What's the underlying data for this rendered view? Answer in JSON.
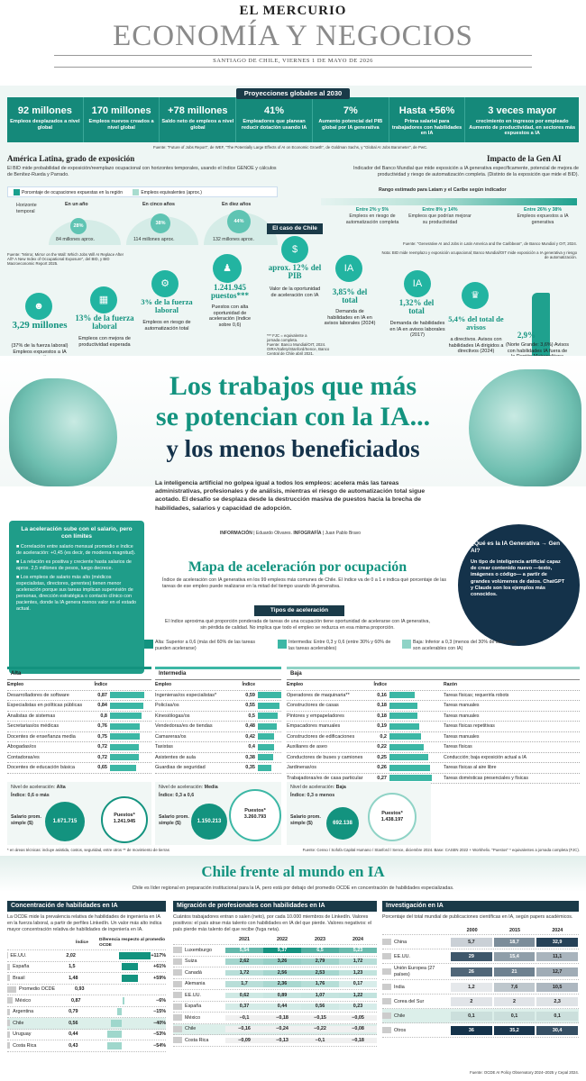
{
  "masthead": {
    "paper": "EL MERCURIO",
    "section": "ECONOMÍA Y NEGOCIOS",
    "dateline": "SANTIAGO DE CHILE, VIERNES 1 DE MAYO DE 2026"
  },
  "projections": {
    "title": "Proyecciones globales al 2030",
    "items": [
      {
        "value": "92 millones",
        "label": "Empleos desplazados a nivel global"
      },
      {
        "value": "170 millones",
        "label": "Empleos nuevos creados a nivel global"
      },
      {
        "value": "+78 millones",
        "label": "Saldo neto de empleos a nivel global"
      },
      {
        "value": "41%",
        "label": "Empleadores que planean reducir dotación usando IA"
      },
      {
        "value": "7%",
        "label": "Aumento potencial del PIB global por IA generativa"
      },
      {
        "value": "Hasta +56%",
        "label": "Prima salarial para trabajadores con habilidades en IA"
      },
      {
        "value": "3 veces mayor",
        "label": "crecimiento en ingresos por empleado Aumento de productividad, en sectores más expuestos a IA"
      }
    ],
    "source": "Fuente: \"Future of Jobs Report\", de WEF, \"The Potentially Large Effects of AI on Economic Growth\", de Goldman Sachs, y \"Global AI Jobs Barometer\", de PwC."
  },
  "latam": {
    "title": "América Latina, grado de exposición",
    "text": "El BID mide probabilidad de exposición/reemplazo ocupacional con horizontes temporales, usando el índice GENOE y cálculos de Benítez-Rueda y Parrado.",
    "legend_a": "Porcentaje de ocupaciones expuestas en la región",
    "legend_b": "Empleos equivalentes (aprox.)",
    "horizon_label": "Horizonte temporal",
    "horizons": [
      {
        "label": "En un año",
        "pct": "28%",
        "jobs": "84 millones aprox."
      },
      {
        "label": "En cinco años",
        "pct": "38%",
        "jobs": "114 millones aprox."
      },
      {
        "label": "En diez años",
        "pct": "44%",
        "jobs": "132 millones aprox."
      }
    ],
    "source": "Fuente: \"Mirror, Mirror on the Wall: Which Jobs Will AI Replace After All? A New Index of Occupational Exposure\", del BID, y BID Macroeconomic Report 2025."
  },
  "genai": {
    "title": "Impacto de la Gen AI",
    "text": "Indicador del Banco Mundial que mide exposición a IA generativa específicamente, potencial de mejora de productividad y riesgo de automatización completa. (Distinto de la exposición que mide el BID).",
    "range_title": "Rango estimado para Latam y el Caribe según indicador",
    "ranges": [
      {
        "pct": "Entre 2% y 5%",
        "label": "Empleos en riesgo de automatización completa"
      },
      {
        "pct": "Entre 8% y 14%",
        "label": "Empleos que podrían mejorar su productividad"
      },
      {
        "pct": "Entre 26% y 38%",
        "label": "Empleos expuestos a IA generativa"
      }
    ],
    "source": "Fuente: \"Generative AI and Jobs in Latin America and the Caribbean\", de Banco Mundial y OIT, 2024.",
    "note": "Nota: BID mide reemplazo y exposición ocupacional; Banco Mundial/OIT mide exposición a IA generativa y riesgo de automatización."
  },
  "chile": {
    "title": "El caso de Chile",
    "stats": [
      {
        "value": "3,29 millones",
        "label": "(37% de la fuerza laboral) Empleos expuestos a IA generativa"
      },
      {
        "value": "13% de la fuerza laboral",
        "label": "Empleos con mejora de productividad esperada"
      },
      {
        "value": "3% de la fuerza laboral",
        "label": "Empleos en riesgo de automatización total"
      },
      {
        "value": "1.241.945 puestos***",
        "label": "Puestos con alta oportunidad de aceleración (índice sobre 0,6)"
      },
      {
        "value": "aprox. 12% del PIB",
        "label": "Valor de la oportunidad de aceleración con IA"
      },
      {
        "value": "3,85% del total",
        "label": "Demanda de habilidades en IA en avisos laborales (2024)"
      },
      {
        "value": "1,32% del total",
        "label": "Demanda de habilidades en IA en avisos laborales (2017)"
      },
      {
        "value": "5,4% del total de avisos",
        "label": "a directivos. Avisos con habilidades IA dirigidos a directivos (2024)"
      },
      {
        "value": "2,9%",
        "label": "(Norte Grande: 3,6%) Avisos con habilidades IA fuera de la Región Metropolitana"
      }
    ],
    "footnote": "*** FJC = equivalente a jornada completa.",
    "source": "Fuente: Banco Mundial/OIT, 2024. OIRA/Safety/Stanford/Sence, Banco Central de Chile abril 2021."
  },
  "headline": {
    "line1": "Los trabajos que más",
    "line2": "se potencian con la IA...",
    "line3": "y los menos beneficiados"
  },
  "intro": "La inteligencia artificial no golpea igual a todos los empleos: acelera más las tareas administrativas, profesionales y de análisis, mientras el riesgo de automatización total sigue acotado. El desafío se desplaza desde la destrucción masiva de puestos hacia la brecha de habilidades, salarios y capacidad de adopción.",
  "credits": {
    "info_label": "INFORMACIÓN",
    "info_name": "Eduardo Olivares",
    "infog_label": "INFOGRAFÍA",
    "infog_name": "Juan Pablo Bravo"
  },
  "side_box": {
    "title": "La aceleración sube con el salario, pero con límites",
    "bullets": [
      "Correlación entre salario mensual promedio e índice de aceleración: +0,45 (es decir, de moderna magnitud).",
      "La relación es positiva y creciente hasta salarios de aprox. 2,5 millones de pesos, luego decrece.",
      "Los empleos de salario más alto (médicos especialistas, directores, gerentes) tienen menor aceleración porque sus tareas implican supervisión de personas, dirección estratégica o contacto clínico con pacientes, donde la IA genera menos valor en el estado actual."
    ]
  },
  "genai_box": {
    "title": "¿Qué es la IA Generativa → Gen AI?",
    "text": "Un tipo de inteligencia artificial capaz de crear contenido nuevo —texto, imágenes o código— a partir de grandes volúmenes de datos. ChatGPT y Claude son los ejemplos más conocidos."
  },
  "map": {
    "title": "Mapa de aceleración por ocupación",
    "text": "Índice de aceleración con IA generativa en los 99 empleos más comunes de Chile. El índice va de 0 a 1 e indica qué porcentaje de las tareas de ese empleo puede realizarse en la mitad del tiempo usando IA generativa.",
    "types_title": "Tipos de aceleración",
    "types_text": "El índice aproxima qué proporción ponderada de tareas de una ocupación tiene oportunidad de acelerarse con IA generativa, sin pérdida de calidad. No implica que todo el empleo se reduzca en esa misma proporción.",
    "alta_def": "Alta: Superior a 0,6 (más del 60% de las tareas pueden acelerarse)",
    "media_def": "Intermedia: Entre 0,3 y 0,6 (entre 30% y 60% de las tareas acelerables)",
    "baja_def": "Baja: Inferior a 0,3 (menos del 30% de las tareas son acelerables con IA)"
  },
  "alta": {
    "title": "Alta",
    "col_a": "Empleo",
    "col_b": "Índice",
    "rows": [
      {
        "n": "Desarrolladores de software",
        "v": "0,87",
        "x": 0.87
      },
      {
        "n": "Especialistas en políticas públicas",
        "v": "0,84",
        "x": 0.84
      },
      {
        "n": "Analistas de sistemas",
        "v": "0,8",
        "x": 0.8
      },
      {
        "n": "Secretarias/os médicas",
        "v": "0,76",
        "x": 0.76
      },
      {
        "n": "Docentes de enseñanza media",
        "v": "0,75",
        "x": 0.75
      },
      {
        "n": "Abogadas/os",
        "v": "0,72",
        "x": 0.72
      },
      {
        "n": "Contadoras/es",
        "v": "0,72",
        "x": 0.72
      },
      {
        "n": "Docentes de educación básica",
        "v": "0,65",
        "x": 0.65
      }
    ],
    "level_label": "Nivel de aceleración",
    "level": "Alta",
    "index_label": "Índice: 0,6 o más",
    "salary_label": "Salario prom. simple ($)",
    "salary": "1.671.715",
    "jobs_label": "Puestos*",
    "jobs": "1.241.945"
  },
  "media": {
    "title": "Intermedia",
    "col_a": "Empleo",
    "col_b": "Índice",
    "rows": [
      {
        "n": "Ingenieras/os especialistas*",
        "v": "0,59",
        "x": 0.59
      },
      {
        "n": "Policías/os",
        "v": "0,55",
        "x": 0.55
      },
      {
        "n": "Kinesiólogas/os",
        "v": "0,5",
        "x": 0.5
      },
      {
        "n": "Vendedoras/es de tiendas",
        "v": "0,48",
        "x": 0.48
      },
      {
        "n": "Camareras/os",
        "v": "0,42",
        "x": 0.42
      },
      {
        "n": "Taxistas",
        "v": "0,4",
        "x": 0.4
      },
      {
        "n": "Asistentes de aula",
        "v": "0,38",
        "x": 0.38
      },
      {
        "n": "Guardias de seguridad",
        "v": "0,35",
        "x": 0.35
      }
    ],
    "level_label": "Nivel de aceleración",
    "level": "Media",
    "index_label": "Índice: 0,3 a 0,6",
    "salary_label": "Salario prom. simple ($)",
    "salary": "1.150.213",
    "jobs_label": "Puestos*",
    "jobs": "3.260.793"
  },
  "baja": {
    "title": "Baja",
    "col_a": "Empleo",
    "col_b": "Índice",
    "col_c": "Razón",
    "rows": [
      {
        "n": "Operadores de maquinaria**",
        "v": "0,16",
        "x": 0.16,
        "r": "Tareas físicas; requerirla robots"
      },
      {
        "n": "Constructores de casas",
        "v": "0,18",
        "x": 0.18,
        "r": "Tareas manuales"
      },
      {
        "n": "Pintores y empapeladores",
        "v": "0,18",
        "x": 0.18,
        "r": "Tareas manuales"
      },
      {
        "n": "Empacadores manuales",
        "v": "0,19",
        "x": 0.19,
        "r": "Tareas físicas repetitivas"
      },
      {
        "n": "Constructores de edificaciones",
        "v": "0,2",
        "x": 0.2,
        "r": "Tareas manuales"
      },
      {
        "n": "Auxiliares de aseo",
        "v": "0,22",
        "x": 0.22,
        "r": "Tareas físicas"
      },
      {
        "n": "Conductores de buses y camiones",
        "v": "0,25",
        "x": 0.25,
        "r": "Conducción; baja exposición actual a IA"
      },
      {
        "n": "Jardineras/os",
        "v": "0,26",
        "x": 0.26,
        "r": "Tareas físicas al aire libre"
      },
      {
        "n": "Trabajadoras/es de casa particular",
        "v": "0,27",
        "x": 0.27,
        "r": "Tareas domésticas presenciales y físicas"
      }
    ],
    "level_label": "Nivel de aceleración",
    "level": "Baja",
    "index_label": "Índice: 0,3 o menos",
    "salary_label": "Salario prom. simple ($)",
    "salary": "692.138",
    "jobs_label": "Puestos*",
    "jobs": "1.438.197"
  },
  "map_foot": "* en áreas técnicas: incluye asistida, costos, seguridad, entre otros   ** de movimiento de tierras",
  "map_source": "Fuente: Censo / Sofofa Capital Humano / Stanford / Sence, diciembre 2024. Base: CASEN 2022 + Workhelix. \"Puestos\" * equivalentes a jornada completa (FJC).",
  "world": {
    "title": "Chile frente al mundo en IA",
    "text": "Chile es líder regional en preparación institucional para la IA, pero está por debajo del promedio OCDE en concentración de habilidades especializadas."
  },
  "skills": {
    "title": "Concentración de habilidades en IA",
    "text": "La OCDE mide la prevalencia relativa de habilidades de ingeniería en IA en la fuerza laboral, a partir de perfiles LinkedIn. Un valor más alto indica mayor concentración relativa de habilidades de ingeniería en IA.",
    "col_idx": "Índice",
    "col_diff": "Diferencia respecto al promedio OCDE",
    "rows": [
      {
        "c": "EE.UU.",
        "v": "2,02",
        "d": "+117%",
        "x": 1.17
      },
      {
        "c": "España",
        "v": "1,5",
        "d": "+61%",
        "x": 0.61
      },
      {
        "c": "Brasil",
        "v": "1,48",
        "d": "+59%",
        "x": 0.59
      },
      {
        "c": "Promedio OCDE",
        "v": "0,93",
        "d": "",
        "x": 0
      },
      {
        "c": "México",
        "v": "0,87",
        "d": "−6%",
        "x": -0.06
      },
      {
        "c": "Argentina",
        "v": "0,79",
        "d": "−15%",
        "x": -0.15
      },
      {
        "c": "Chile",
        "v": "0,56",
        "d": "−40%",
        "x": -0.4
      },
      {
        "c": "Uruguay",
        "v": "0,44",
        "d": "−53%",
        "x": -0.53
      },
      {
        "c": "Costa Rica",
        "v": "0,43",
        "d": "−54%",
        "x": -0.54
      }
    ]
  },
  "migration": {
    "title": "Migración de profesionales con habilidades en IA",
    "text": "Cuántos trabajadores entran o salen (neto), por cada 10.000 miembros de LinkedIn. Valores positivos: el país atrae más talento con habilidades en IA del que pierde. Valores negativos: el país pierde más talento del que recibe (fuga neta).",
    "years": [
      "2021",
      "2022",
      "2023",
      "2024"
    ],
    "rows": [
      {
        "c": "Luxemburgo",
        "v": [
          "5,54",
          "9,37",
          "6,5",
          "5,23"
        ]
      },
      {
        "c": "Suiza",
        "v": [
          "2,62",
          "3,26",
          "2,79",
          "1,72"
        ]
      },
      {
        "c": "Canadá",
        "v": [
          "1,72",
          "2,56",
          "2,53",
          "1,23"
        ]
      },
      {
        "c": "Alemania",
        "v": [
          "1,7",
          "2,36",
          "1,76",
          "0,17"
        ]
      },
      {
        "c": "EE.UU.",
        "v": [
          "0,62",
          "0,89",
          "1,07",
          "1,22"
        ]
      },
      {
        "c": "España",
        "v": [
          "0,37",
          "0,44",
          "0,56",
          "0,23"
        ]
      },
      {
        "c": "México",
        "v": [
          "−0,1",
          "−0,18",
          "−0,15",
          "−0,05"
        ]
      },
      {
        "c": "Chile",
        "v": [
          "−0,16",
          "−0,24",
          "−0,22",
          "−0,08"
        ]
      },
      {
        "c": "Costa Rica",
        "v": [
          "−0,09",
          "−0,13",
          "−0,1",
          "−0,18"
        ]
      }
    ]
  },
  "research": {
    "title": "Investigación en IA",
    "text": "Porcentaje del total mundial de publicaciones científicas en IA, según papers académicos.",
    "years": [
      "2000",
      "2015",
      "2024"
    ],
    "rows": [
      {
        "c": "China",
        "v": [
          "5,7",
          "18,7",
          "32,9"
        ]
      },
      {
        "c": "EE.UU.",
        "v": [
          "29",
          "15,4",
          "11,1"
        ]
      },
      {
        "c": "Unión Europea (27 países)",
        "v": [
          "26",
          "21",
          "12,7"
        ]
      },
      {
        "c": "India",
        "v": [
          "1,2",
          "7,6",
          "10,5"
        ]
      },
      {
        "c": "Corea del Sur",
        "v": [
          "2",
          "2",
          "2,3"
        ]
      },
      {
        "c": "Chile",
        "v": [
          "0,1",
          "0,1",
          "0,1"
        ]
      },
      {
        "c": "Otros",
        "v": [
          "36",
          "35,2",
          "30,4"
        ]
      }
    ]
  },
  "world_source": "Fuente: OCDE AI Policy Observatory 2024–2025 y Cepal 2024."
}
